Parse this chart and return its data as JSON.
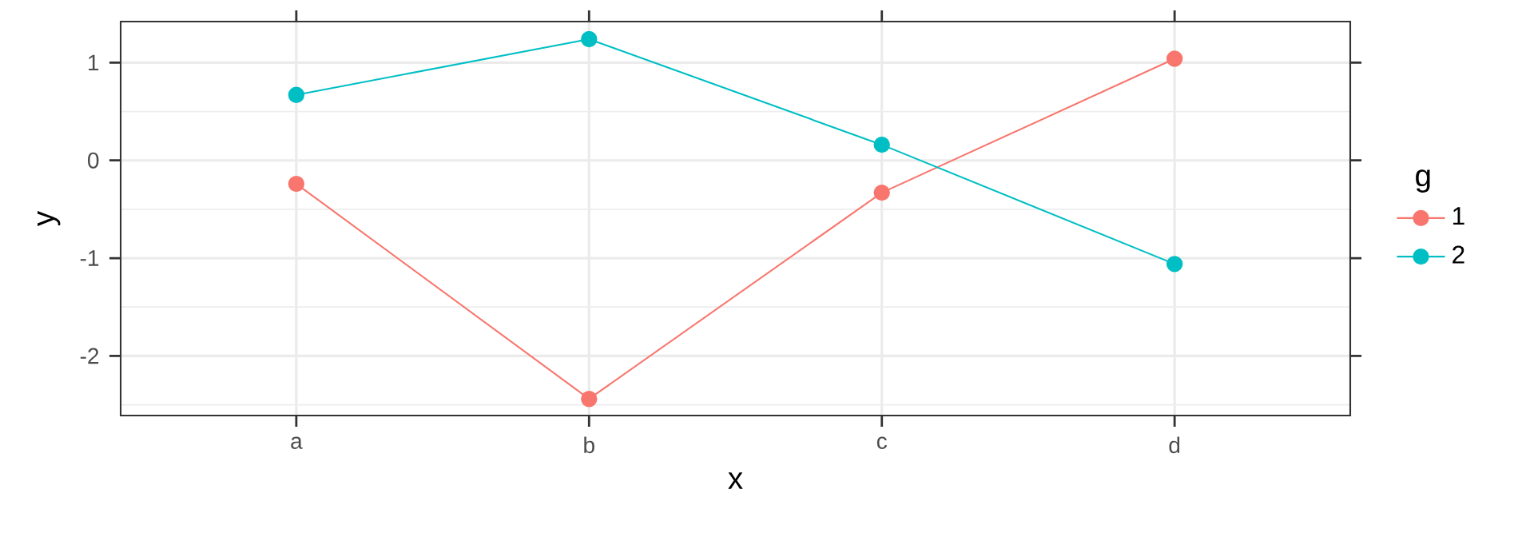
{
  "chart_data": {
    "type": "line",
    "xlabel": "x",
    "ylabel": "y",
    "legend_title": "g",
    "categories": [
      "a",
      "b",
      "c",
      "d"
    ],
    "series": [
      {
        "name": "1",
        "color": "#f8766d",
        "values": [
          -0.24,
          -2.44,
          -0.33,
          1.04
        ]
      },
      {
        "name": "2",
        "color": "#00bfc4",
        "values": [
          0.67,
          1.24,
          0.16,
          -1.06
        ]
      }
    ],
    "ylim": [
      -2.61,
      1.42
    ],
    "yticks": [
      -2,
      -1,
      0,
      1
    ],
    "grid": true,
    "legend": "right",
    "marker": "circle",
    "line_style": "solid"
  }
}
